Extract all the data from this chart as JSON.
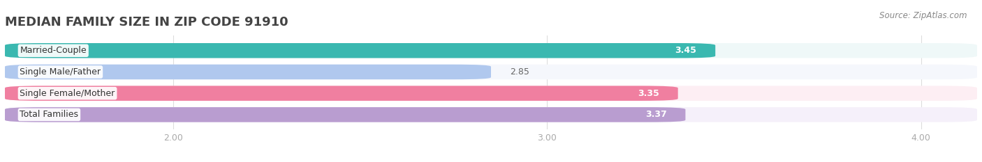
{
  "title": "MEDIAN FAMILY SIZE IN ZIP CODE 91910",
  "source": "Source: ZipAtlas.com",
  "categories": [
    "Married-Couple",
    "Single Male/Father",
    "Single Female/Mother",
    "Total Families"
  ],
  "values": [
    3.45,
    2.85,
    3.35,
    3.37
  ],
  "bar_colors": [
    "#3ab8b0",
    "#b0c8ee",
    "#f07fa0",
    "#b99dd0"
  ],
  "bar_bg_colors": [
    "#eff8f8",
    "#f5f7fc",
    "#fdeef3",
    "#f5f0fa"
  ],
  "xmin": 1.55,
  "xmax": 4.15,
  "xticks": [
    2.0,
    3.0,
    4.0
  ],
  "xtick_labels": [
    "2.00",
    "3.00",
    "4.00"
  ],
  "label_fontsize": 9.0,
  "value_fontsize": 9.0,
  "title_fontsize": 13,
  "bar_height": 0.7,
  "background_color": "#ffffff",
  "value_threshold": 2.95
}
